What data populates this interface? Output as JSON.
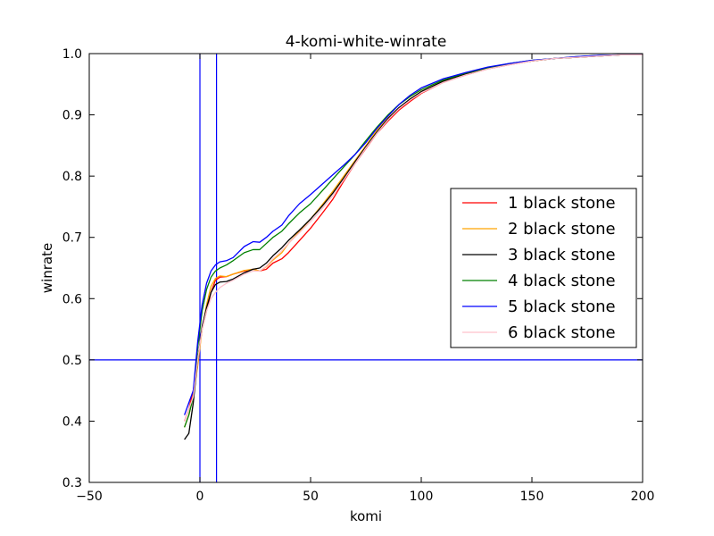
{
  "chart_data": {
    "type": "line",
    "title": "4-komi-white-winrate",
    "xlabel": "komi",
    "ylabel": "winrate",
    "xlim": [
      -50,
      200
    ],
    "ylim": [
      0.3,
      1.0
    ],
    "xticks": [
      -50,
      0,
      50,
      100,
      150,
      200
    ],
    "xtick_labels": [
      "−50",
      "0",
      "50",
      "100",
      "150",
      "200"
    ],
    "yticks": [
      0.3,
      0.4,
      0.5,
      0.6,
      0.7,
      0.8,
      0.9,
      1.0
    ],
    "ytick_labels": [
      "0.3",
      "0.4",
      "0.5",
      "0.6",
      "0.7",
      "0.8",
      "0.9",
      "1.0"
    ],
    "grid": false,
    "legend_position": "center-right",
    "reference_lines": {
      "vertical_x": [
        0,
        7.5
      ],
      "horizontal_y": [
        0.5
      ],
      "color": "#0000ff"
    },
    "series": [
      {
        "name": "1 black stone",
        "color": "#ff0000",
        "points": [
          [
            -7,
            0.4
          ],
          [
            -5,
            0.42
          ],
          [
            -3,
            0.45
          ],
          [
            -1,
            0.5
          ],
          [
            1,
            0.55
          ],
          [
            3,
            0.58
          ],
          [
            5,
            0.61
          ],
          [
            7,
            0.63
          ],
          [
            9,
            0.635
          ],
          [
            12,
            0.636
          ],
          [
            15,
            0.64
          ],
          [
            20,
            0.645
          ],
          [
            24,
            0.648
          ],
          [
            27,
            0.645
          ],
          [
            30,
            0.648
          ],
          [
            33,
            0.658
          ],
          [
            37,
            0.665
          ],
          [
            40,
            0.675
          ],
          [
            45,
            0.695
          ],
          [
            50,
            0.715
          ],
          [
            55,
            0.738
          ],
          [
            60,
            0.762
          ],
          [
            65,
            0.792
          ],
          [
            70,
            0.82
          ],
          [
            75,
            0.845
          ],
          [
            80,
            0.87
          ],
          [
            85,
            0.89
          ],
          [
            90,
            0.908
          ],
          [
            95,
            0.922
          ],
          [
            100,
            0.935
          ],
          [
            110,
            0.953
          ],
          [
            120,
            0.965
          ],
          [
            130,
            0.975
          ],
          [
            140,
            0.982
          ],
          [
            150,
            0.988
          ],
          [
            160,
            0.992
          ],
          [
            170,
            0.994
          ],
          [
            180,
            0.996
          ],
          [
            190,
            0.998
          ],
          [
            200,
            0.998
          ]
        ]
      },
      {
        "name": "2 black stone",
        "color": "#ffa500",
        "points": [
          [
            -7,
            0.39
          ],
          [
            -5,
            0.41
          ],
          [
            -3,
            0.44
          ],
          [
            -1,
            0.49
          ],
          [
            1,
            0.55
          ],
          [
            3,
            0.59
          ],
          [
            5,
            0.62
          ],
          [
            7,
            0.633
          ],
          [
            9,
            0.637
          ],
          [
            12,
            0.636
          ],
          [
            15,
            0.64
          ],
          [
            20,
            0.646
          ],
          [
            24,
            0.648
          ],
          [
            27,
            0.645
          ],
          [
            30,
            0.652
          ],
          [
            33,
            0.663
          ],
          [
            37,
            0.675
          ],
          [
            40,
            0.69
          ],
          [
            45,
            0.71
          ],
          [
            50,
            0.73
          ],
          [
            55,
            0.752
          ],
          [
            60,
            0.775
          ],
          [
            65,
            0.8
          ],
          [
            70,
            0.825
          ],
          [
            75,
            0.85
          ],
          [
            80,
            0.875
          ],
          [
            85,
            0.895
          ],
          [
            90,
            0.912
          ],
          [
            95,
            0.926
          ],
          [
            100,
            0.938
          ],
          [
            110,
            0.955
          ],
          [
            120,
            0.967
          ],
          [
            130,
            0.976
          ],
          [
            140,
            0.983
          ],
          [
            150,
            0.988
          ],
          [
            160,
            0.992
          ],
          [
            170,
            0.994
          ],
          [
            180,
            0.996
          ],
          [
            190,
            0.998
          ],
          [
            200,
            0.998
          ]
        ]
      },
      {
        "name": "3 black stone",
        "color": "#000000",
        "points": [
          [
            -7,
            0.37
          ],
          [
            -5,
            0.38
          ],
          [
            -3,
            0.43
          ],
          [
            -1,
            0.5
          ],
          [
            1,
            0.555
          ],
          [
            3,
            0.585
          ],
          [
            5,
            0.61
          ],
          [
            7,
            0.623
          ],
          [
            9,
            0.627
          ],
          [
            12,
            0.628
          ],
          [
            15,
            0.632
          ],
          [
            20,
            0.642
          ],
          [
            24,
            0.648
          ],
          [
            27,
            0.65
          ],
          [
            30,
            0.658
          ],
          [
            33,
            0.67
          ],
          [
            37,
            0.683
          ],
          [
            40,
            0.695
          ],
          [
            45,
            0.712
          ],
          [
            50,
            0.73
          ],
          [
            55,
            0.75
          ],
          [
            60,
            0.772
          ],
          [
            65,
            0.797
          ],
          [
            70,
            0.823
          ],
          [
            75,
            0.848
          ],
          [
            80,
            0.872
          ],
          [
            85,
            0.894
          ],
          [
            90,
            0.912
          ],
          [
            95,
            0.926
          ],
          [
            100,
            0.938
          ],
          [
            110,
            0.955
          ],
          [
            120,
            0.967
          ],
          [
            130,
            0.976
          ],
          [
            140,
            0.983
          ],
          [
            150,
            0.988
          ],
          [
            160,
            0.992
          ],
          [
            170,
            0.994
          ],
          [
            180,
            0.996
          ],
          [
            190,
            0.998
          ],
          [
            200,
            0.998
          ]
        ]
      },
      {
        "name": "4 black stone",
        "color": "#008000",
        "points": [
          [
            -7,
            0.39
          ],
          [
            -5,
            0.41
          ],
          [
            -3,
            0.44
          ],
          [
            -1,
            0.52
          ],
          [
            1,
            0.58
          ],
          [
            3,
            0.615
          ],
          [
            5,
            0.635
          ],
          [
            7,
            0.645
          ],
          [
            9,
            0.65
          ],
          [
            12,
            0.655
          ],
          [
            15,
            0.662
          ],
          [
            20,
            0.675
          ],
          [
            24,
            0.68
          ],
          [
            27,
            0.68
          ],
          [
            30,
            0.69
          ],
          [
            33,
            0.7
          ],
          [
            37,
            0.71
          ],
          [
            40,
            0.722
          ],
          [
            45,
            0.74
          ],
          [
            50,
            0.755
          ],
          [
            55,
            0.775
          ],
          [
            60,
            0.795
          ],
          [
            65,
            0.815
          ],
          [
            70,
            0.835
          ],
          [
            75,
            0.858
          ],
          [
            80,
            0.88
          ],
          [
            85,
            0.9
          ],
          [
            90,
            0.917
          ],
          [
            95,
            0.93
          ],
          [
            100,
            0.941
          ],
          [
            110,
            0.957
          ],
          [
            120,
            0.968
          ],
          [
            130,
            0.977
          ],
          [
            140,
            0.984
          ],
          [
            150,
            0.989
          ],
          [
            160,
            0.992
          ],
          [
            170,
            0.995
          ],
          [
            180,
            0.997
          ],
          [
            190,
            0.998
          ],
          [
            200,
            0.998
          ]
        ]
      },
      {
        "name": "5 black stone",
        "color": "#0000ff",
        "points": [
          [
            -7,
            0.41
          ],
          [
            -5,
            0.43
          ],
          [
            -3,
            0.45
          ],
          [
            -1,
            0.53
          ],
          [
            1,
            0.59
          ],
          [
            3,
            0.625
          ],
          [
            5,
            0.645
          ],
          [
            7,
            0.655
          ],
          [
            9,
            0.66
          ],
          [
            12,
            0.662
          ],
          [
            15,
            0.667
          ],
          [
            20,
            0.685
          ],
          [
            24,
            0.693
          ],
          [
            27,
            0.692
          ],
          [
            30,
            0.7
          ],
          [
            33,
            0.71
          ],
          [
            37,
            0.72
          ],
          [
            40,
            0.735
          ],
          [
            45,
            0.755
          ],
          [
            50,
            0.77
          ],
          [
            55,
            0.786
          ],
          [
            60,
            0.802
          ],
          [
            65,
            0.818
          ],
          [
            70,
            0.835
          ],
          [
            75,
            0.855
          ],
          [
            80,
            0.878
          ],
          [
            85,
            0.898
          ],
          [
            90,
            0.917
          ],
          [
            95,
            0.932
          ],
          [
            100,
            0.944
          ],
          [
            110,
            0.959
          ],
          [
            120,
            0.969
          ],
          [
            130,
            0.978
          ],
          [
            140,
            0.984
          ],
          [
            150,
            0.989
          ],
          [
            160,
            0.992
          ],
          [
            170,
            0.995
          ],
          [
            180,
            0.997
          ],
          [
            190,
            0.998
          ],
          [
            200,
            0.998
          ]
        ]
      },
      {
        "name": "6 black stone",
        "color": "#ffc0cb",
        "points": [
          [
            -7,
            0.4
          ],
          [
            -5,
            0.42
          ],
          [
            -3,
            0.44
          ],
          [
            -1,
            0.5
          ],
          [
            1,
            0.55
          ],
          [
            3,
            0.58
          ],
          [
            5,
            0.6
          ],
          [
            7,
            0.61
          ],
          [
            9,
            0.618
          ],
          [
            12,
            0.625
          ],
          [
            15,
            0.63
          ],
          [
            20,
            0.64
          ],
          [
            24,
            0.645
          ],
          [
            27,
            0.645
          ],
          [
            30,
            0.653
          ],
          [
            33,
            0.665
          ],
          [
            37,
            0.678
          ],
          [
            40,
            0.69
          ],
          [
            45,
            0.708
          ],
          [
            50,
            0.726
          ],
          [
            55,
            0.746
          ],
          [
            60,
            0.768
          ],
          [
            65,
            0.794
          ],
          [
            70,
            0.82
          ],
          [
            75,
            0.846
          ],
          [
            80,
            0.87
          ],
          [
            85,
            0.892
          ],
          [
            90,
            0.91
          ],
          [
            95,
            0.924
          ],
          [
            100,
            0.936
          ],
          [
            110,
            0.953
          ],
          [
            120,
            0.965
          ],
          [
            130,
            0.975
          ],
          [
            140,
            0.982
          ],
          [
            150,
            0.988
          ],
          [
            160,
            0.992
          ],
          [
            170,
            0.994
          ],
          [
            180,
            0.996
          ],
          [
            190,
            0.998
          ],
          [
            200,
            0.998
          ]
        ]
      }
    ]
  }
}
